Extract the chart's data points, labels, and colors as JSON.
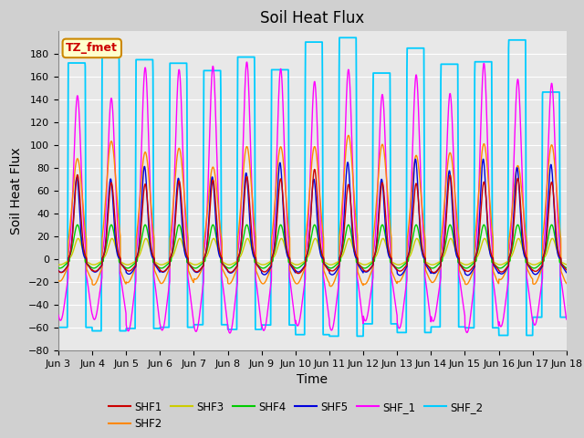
{
  "title": "Soil Heat Flux",
  "xlabel": "Time",
  "ylabel": "Soil Heat Flux",
  "ylim": [
    -80,
    200
  ],
  "yticks": [
    -80,
    -60,
    -40,
    -20,
    0,
    20,
    40,
    60,
    80,
    100,
    120,
    140,
    160,
    180
  ],
  "n_days": 15,
  "xtick_labels": [
    "Jun 3",
    "Jun 4",
    "Jun 5",
    "Jun 6",
    "Jun 7",
    "Jun 8",
    "Jun 9",
    "Jun 10",
    "Jun 11",
    "Jun 12",
    "Jun 13",
    "Jun 14",
    "Jun 15",
    "Jun 16",
    "Jun 17",
    "Jun 18"
  ],
  "series_colors": {
    "SHF1": "#cc0000",
    "SHF2": "#ff8800",
    "SHF3": "#cccc00",
    "SHF4": "#00cc00",
    "SHF5": "#0000dd",
    "SHF_1": "#ff00ff",
    "SHF_2": "#00ccff"
  },
  "annotation_text": "TZ_fmet",
  "annotation_color": "#cc0000",
  "annotation_bg": "#ffffcc",
  "annotation_border": "#cc8800",
  "plot_bg": "#e8e8e8",
  "fig_bg": "#d0d0d0",
  "title_fontsize": 12,
  "label_fontsize": 10,
  "tick_fontsize": 8
}
